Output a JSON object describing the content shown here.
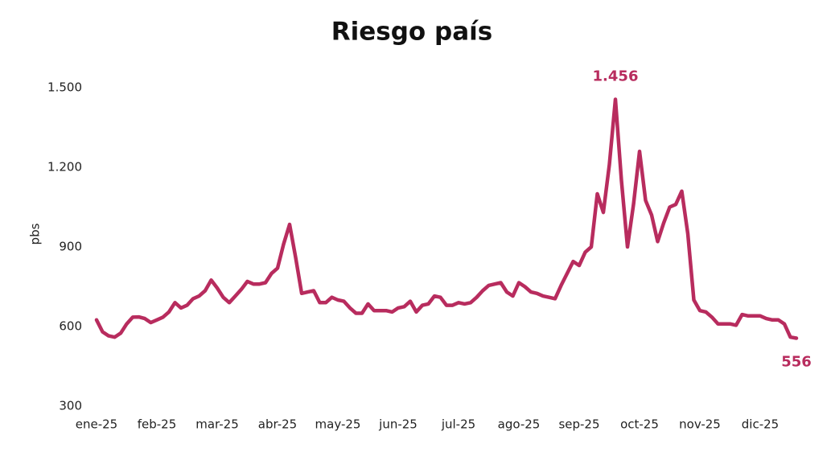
{
  "chart_data": {
    "type": "line",
    "title": "Riesgo país",
    "ylabel": "pbs",
    "categories": [
      "ene-25",
      null,
      null,
      null,
      null,
      null,
      null,
      null,
      null,
      null,
      "feb-25",
      null,
      null,
      null,
      null,
      null,
      null,
      null,
      null,
      null,
      "mar-25",
      null,
      null,
      null,
      null,
      null,
      null,
      null,
      null,
      null,
      "abr-25",
      null,
      null,
      null,
      null,
      null,
      null,
      null,
      null,
      null,
      "may-25",
      null,
      null,
      null,
      null,
      null,
      null,
      null,
      null,
      null,
      "jun-25",
      null,
      null,
      null,
      null,
      null,
      null,
      null,
      null,
      null,
      "jul-25",
      null,
      null,
      null,
      null,
      null,
      null,
      null,
      null,
      null,
      "ago-25",
      null,
      null,
      null,
      null,
      null,
      null,
      null,
      null,
      null,
      "sep-25",
      null,
      null,
      null,
      null,
      null,
      null,
      null,
      null,
      null,
      "oct-25",
      null,
      null,
      null,
      null,
      null,
      null,
      null,
      null,
      null,
      "nov-25",
      null,
      null,
      null,
      null,
      null,
      null,
      null,
      null,
      null,
      "dic-25",
      null,
      null,
      null,
      null,
      null,
      null
    ],
    "series": [
      {
        "name": "Riesgo país",
        "color": "#b82c5e",
        "values": [
          625,
          580,
          565,
          560,
          575,
          610,
          635,
          636,
          630,
          615,
          625,
          635,
          655,
          690,
          670,
          680,
          705,
          715,
          735,
          775,
          745,
          710,
          690,
          715,
          740,
          770,
          760,
          760,
          765,
          800,
          820,
          910,
          985,
          860,
          725,
          730,
          735,
          690,
          690,
          710,
          700,
          695,
          670,
          650,
          650,
          685,
          660,
          660,
          660,
          655,
          670,
          675,
          695,
          655,
          680,
          685,
          715,
          710,
          680,
          680,
          690,
          685,
          690,
          710,
          735,
          755,
          760,
          765,
          730,
          715,
          765,
          750,
          730,
          725,
          715,
          710,
          705,
          755,
          800,
          845,
          830,
          880,
          900,
          1100,
          1030,
          1210,
          1456,
          1150,
          900,
          1060,
          1260,
          1075,
          1020,
          920,
          990,
          1050,
          1060,
          1110,
          950,
          700,
          660,
          655,
          635,
          610,
          610,
          610,
          605,
          645,
          640,
          640,
          640,
          630,
          625,
          625,
          610,
          560,
          556
        ],
        "value_labels": [
          null,
          null,
          null,
          null,
          null,
          null,
          null,
          null,
          null,
          null,
          null,
          null,
          null,
          null,
          null,
          null,
          null,
          null,
          null,
          null,
          null,
          null,
          null,
          null,
          null,
          null,
          null,
          null,
          null,
          null,
          null,
          null,
          null,
          null,
          null,
          null,
          null,
          null,
          null,
          null,
          null,
          null,
          null,
          null,
          null,
          null,
          null,
          null,
          null,
          null,
          null,
          null,
          null,
          null,
          null,
          null,
          null,
          null,
          null,
          null,
          null,
          null,
          null,
          null,
          null,
          null,
          null,
          null,
          null,
          null,
          null,
          null,
          null,
          null,
          null,
          null,
          null,
          null,
          null,
          null,
          null,
          null,
          null,
          null,
          null,
          null,
          "1.456",
          null,
          null,
          null,
          null,
          null,
          null,
          null,
          null,
          null,
          null,
          null,
          null,
          null,
          null,
          null,
          null,
          null,
          null,
          null,
          null,
          null,
          null,
          null,
          null,
          null,
          null,
          null,
          null,
          null,
          "556"
        ]
      }
    ],
    "ylim": [
      300,
      1500
    ],
    "yticks": [
      300,
      600,
      900,
      {
        "value": 1200,
        "label": "1.200"
      },
      {
        "value": 1500,
        "label": "1.500"
      }
    ],
    "grid": false
  }
}
